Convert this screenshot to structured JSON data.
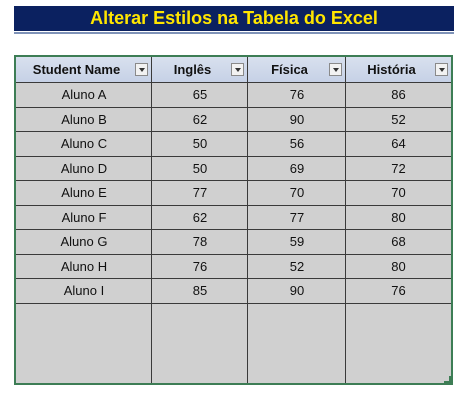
{
  "title": "Alterar Estilos na Tabela do Excel",
  "colors": {
    "title_bg": "#0b2160",
    "title_text": "#ffe600",
    "header_bg": "#c6d1e6",
    "cell_bg": "#d0d0d0",
    "table_border": "#3d7d55"
  },
  "table": {
    "columns": [
      {
        "label": "Student Name",
        "filter_icon": "dropdown-filter-icon"
      },
      {
        "label": "Inglês",
        "filter_icon": "dropdown-filter-icon"
      },
      {
        "label": "Física",
        "filter_icon": "dropdown-filter-icon"
      },
      {
        "label": "História",
        "filter_icon": "dropdown-filter-icon"
      }
    ],
    "rows": [
      [
        "Aluno A",
        "65",
        "76",
        "86"
      ],
      [
        "Aluno B",
        "62",
        "90",
        "52"
      ],
      [
        "Aluno C",
        "50",
        "56",
        "64"
      ],
      [
        "Aluno D",
        "50",
        "69",
        "72"
      ],
      [
        "Aluno E",
        "77",
        "70",
        "70"
      ],
      [
        "Aluno F",
        "62",
        "77",
        "80"
      ],
      [
        "Aluno G",
        "78",
        "59",
        "68"
      ],
      [
        "Aluno H",
        "76",
        "52",
        "80"
      ],
      [
        "Aluno I",
        "85",
        "90",
        "76"
      ]
    ]
  }
}
